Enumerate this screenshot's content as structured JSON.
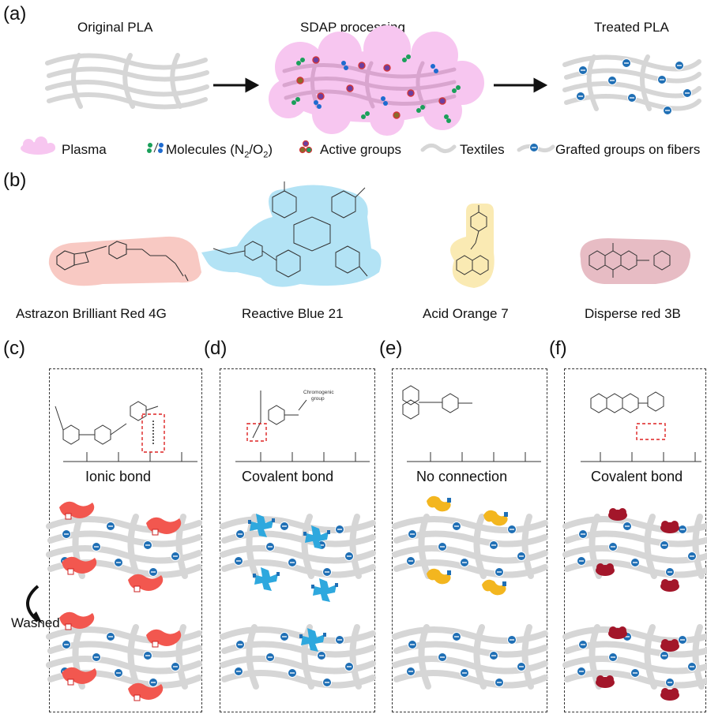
{
  "panel_letters": [
    "(a)",
    "(b)",
    "(c)",
    "(d)",
    "(e)",
    "(f)"
  ],
  "panel_a": {
    "titles": [
      "Original PLA",
      "SDAP processing",
      "Treated PLA"
    ],
    "legend": {
      "plasma": "Plasma",
      "molecules_prefix": "Molecules (N",
      "molecules_sub1": "2",
      "molecules_mid": "/O",
      "molecules_sub2": "2",
      "molecules_suffix": ")",
      "active": "Active groups",
      "textiles": "Textiles",
      "grafted": "Grafted groups on fibers"
    }
  },
  "panel_b": {
    "dyes": [
      "Astrazon Brilliant Red 4G",
      "Reactive Blue 21",
      "Acid Orange 7",
      "Disperse red 3B"
    ]
  },
  "panels_cf": {
    "bonds": [
      "Ionic bond",
      "Covalent bond",
      "No connection",
      "Covalent bond"
    ],
    "washed": "Washed",
    "chromogenic_1": "Chromogenic",
    "chromogenic_2": "group",
    "colors": {
      "red": "#f2574f",
      "blue": "#2ea8de",
      "orange": "#f3b61f",
      "maroon": "#a3162a",
      "fiber": "#d6d6d6",
      "plasma": "#f7c6f0",
      "grafted": "#1f6fb5"
    }
  }
}
